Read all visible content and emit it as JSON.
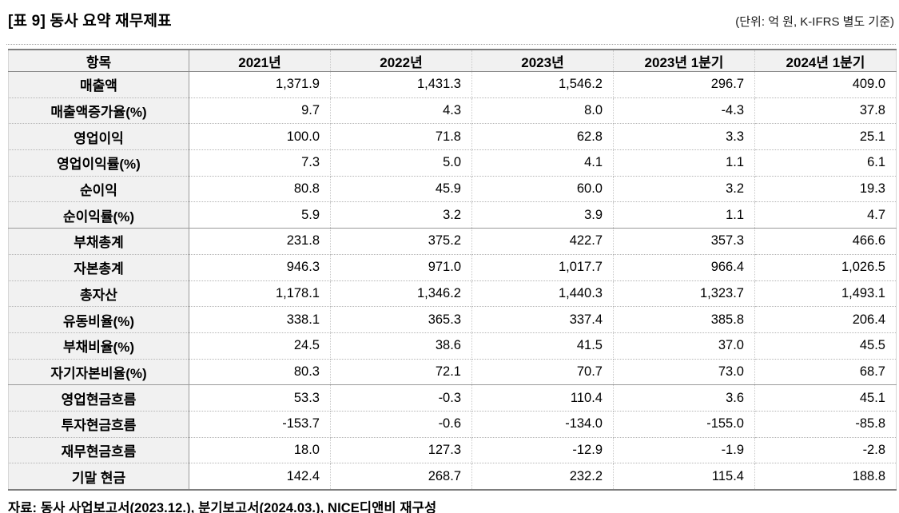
{
  "page": {
    "title": "[표 9] 동사 요약 재무제표",
    "unit_note": "(단위: 억 원, K-IFRS 별도 기준)",
    "source_note": "자료: 동사 사업보고서(2023.12.), 분기보고서(2024.03.), NICE디앤비 재구성"
  },
  "table": {
    "columns": [
      "항목",
      "2021년",
      "2022년",
      "2023년",
      "2023년 1분기",
      "2024년 1분기"
    ],
    "rows": [
      {
        "label": "매출액",
        "group": "income",
        "values": [
          "1,371.9",
          "1,431.3",
          "1,546.2",
          "296.7",
          "409.0"
        ]
      },
      {
        "label": "매출액증가율(%)",
        "group": "income",
        "values": [
          "9.7",
          "4.3",
          "8.0",
          "-4.3",
          "37.8"
        ]
      },
      {
        "label": "영업이익",
        "group": "income",
        "values": [
          "100.0",
          "71.8",
          "62.8",
          "3.3",
          "25.1"
        ]
      },
      {
        "label": "영업이익률(%)",
        "group": "income",
        "values": [
          "7.3",
          "5.0",
          "4.1",
          "1.1",
          "6.1"
        ]
      },
      {
        "label": "순이익",
        "group": "income",
        "values": [
          "80.8",
          "45.9",
          "60.0",
          "3.2",
          "19.3"
        ]
      },
      {
        "label": "순이익률(%)",
        "group": "income",
        "values": [
          "5.9",
          "3.2",
          "3.9",
          "1.1",
          "4.7"
        ]
      },
      {
        "label": "부채총계",
        "group": "balance",
        "values": [
          "231.8",
          "375.2",
          "422.7",
          "357.3",
          "466.6"
        ]
      },
      {
        "label": "자본총계",
        "group": "balance",
        "values": [
          "946.3",
          "971.0",
          "1,017.7",
          "966.4",
          "1,026.5"
        ]
      },
      {
        "label": "총자산",
        "group": "balance",
        "values": [
          "1,178.1",
          "1,346.2",
          "1,440.3",
          "1,323.7",
          "1,493.1"
        ]
      },
      {
        "label": "유동비율(%)",
        "group": "balance",
        "values": [
          "338.1",
          "365.3",
          "337.4",
          "385.8",
          "206.4"
        ]
      },
      {
        "label": "부채비율(%)",
        "group": "balance",
        "values": [
          "24.5",
          "38.6",
          "41.5",
          "37.0",
          "45.5"
        ]
      },
      {
        "label": "자기자본비율(%)",
        "group": "balance",
        "values": [
          "80.3",
          "72.1",
          "70.7",
          "73.0",
          "68.7"
        ]
      },
      {
        "label": "영업현금흐름",
        "group": "cashflow",
        "values": [
          "53.3",
          "-0.3",
          "110.4",
          "3.6",
          "45.1"
        ]
      },
      {
        "label": "투자현금흐름",
        "group": "cashflow",
        "values": [
          "-153.7",
          "-0.6",
          "-134.0",
          "-155.0",
          "-85.8"
        ]
      },
      {
        "label": "재무현금흐름",
        "group": "cashflow",
        "values": [
          "18.0",
          "127.3",
          "-12.9",
          "-1.9",
          "-2.8"
        ]
      },
      {
        "label": "기말 현금",
        "group": "cashflow",
        "values": [
          "142.4",
          "268.7",
          "232.2",
          "115.4",
          "188.8"
        ]
      }
    ]
  },
  "colors": {
    "header_bg": "#f1f1f1",
    "label_bg": "#f1f1f1",
    "border_strong": "#7d7d7d",
    "border_solid": "#9a9a9a",
    "border_dotted": "#b5b5b5",
    "text": "#000000"
  }
}
